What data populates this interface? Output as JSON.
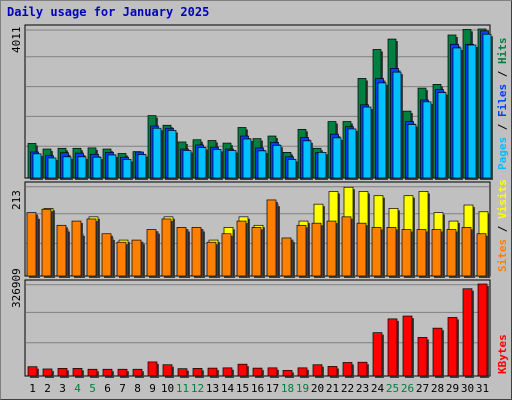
{
  "title": "Daily usage for January 2025",
  "colors": {
    "title": "#0000C0",
    "pages": "#00C0FF",
    "files": "#0040FF",
    "hits": "#008040",
    "sites": "#FF8000",
    "visits": "#FFFF00",
    "kbytes": "#FF0000",
    "weekend_day": "#008040",
    "weekday": "#000000"
  },
  "panels": {
    "hits": {
      "max_label": "4011",
      "legend": [
        {
          "text": "Pages",
          "color": "#00C0FF"
        },
        {
          "text": " / ",
          "color": "#000000"
        },
        {
          "text": "Files",
          "color": "#0040FF"
        },
        {
          "text": " / ",
          "color": "#000000"
        },
        {
          "text": "Hits",
          "color": "#008040"
        }
      ]
    },
    "visits": {
      "max_label": "213",
      "legend": [
        {
          "text": "Sites",
          "color": "#FF8000"
        },
        {
          "text": " / ",
          "color": "#000000"
        },
        {
          "text": "Visits",
          "color": "#FFFF00"
        }
      ]
    },
    "kbytes": {
      "max_label": "326909",
      "legend": [
        {
          "text": "KBytes",
          "color": "#FF0000"
        }
      ]
    }
  },
  "chart_data": {
    "type": "bar",
    "title": "Daily usage for January 2025",
    "categories": [
      "1",
      "2",
      "3",
      "4",
      "5",
      "6",
      "7",
      "8",
      "9",
      "10",
      "11",
      "12",
      "13",
      "14",
      "15",
      "16",
      "17",
      "18",
      "19",
      "20",
      "21",
      "22",
      "23",
      "24",
      "25",
      "26",
      "27",
      "28",
      "29",
      "30",
      "31"
    ],
    "weekend_days": [
      "4",
      "5",
      "11",
      "12",
      "18",
      "19",
      "25",
      "26"
    ],
    "hits_panel": {
      "ymax": 4011,
      "series": [
        {
          "name": "Hits",
          "values": [
            930,
            780,
            800,
            800,
            810,
            780,
            660,
            710,
            1680,
            1420,
            970,
            1030,
            1010,
            940,
            1360,
            1060,
            1130,
            690,
            1310,
            800,
            1520,
            1520,
            2680,
            3460,
            3740,
            1800,
            2420,
            2520,
            3850,
            4000,
            4011
          ]
        },
        {
          "name": "Files",
          "values": [
            700,
            600,
            680,
            670,
            640,
            690,
            560,
            700,
            1400,
            1340,
            780,
            890,
            830,
            780,
            1130,
            810,
            960,
            570,
            1090,
            680,
            1180,
            1380,
            1970,
            2680,
            2950,
            1520,
            2100,
            2380,
            3600,
            3600,
            3960
          ]
        },
        {
          "name": "Pages",
          "values": [
            650,
            540,
            570,
            570,
            560,
            620,
            500,
            630,
            1340,
            1280,
            740,
            820,
            770,
            740,
            1050,
            730,
            880,
            500,
            1000,
            690,
            1080,
            1320,
            1910,
            2560,
            2850,
            1440,
            2050,
            2300,
            3500,
            3580,
            3870
          ]
        }
      ]
    },
    "visits_panel": {
      "ymax": 213,
      "series": [
        {
          "name": "Visits",
          "values": [
            140,
            160,
            110,
            100,
            140,
            90,
            85,
            80,
            105,
            140,
            110,
            110,
            85,
            115,
            140,
            120,
            170,
            85,
            130,
            170,
            200,
            210,
            200,
            190,
            160,
            190,
            200,
            150,
            130,
            168,
            152
          ]
        },
        {
          "name": "Sites",
          "values": [
            150,
            158,
            120,
            130,
            135,
            100,
            80,
            85,
            110,
            135,
            115,
            115,
            80,
            100,
            130,
            115,
            180,
            90,
            120,
            125,
            130,
            140,
            125,
            115,
            115,
            110,
            110,
            110,
            110,
            115,
            100
          ]
        }
      ]
    },
    "kbytes_panel": {
      "ymax": 326909,
      "series": [
        {
          "name": "KBytes",
          "values": [
            33000,
            25000,
            27000,
            27000,
            24000,
            24000,
            24000,
            24000,
            50000,
            40000,
            26000,
            27000,
            28000,
            29000,
            42000,
            28000,
            29000,
            20000,
            29000,
            40000,
            34000,
            48000,
            49000,
            154000,
            203000,
            213000,
            137000,
            170000,
            208000,
            310000,
            326909
          ]
        }
      ]
    }
  }
}
